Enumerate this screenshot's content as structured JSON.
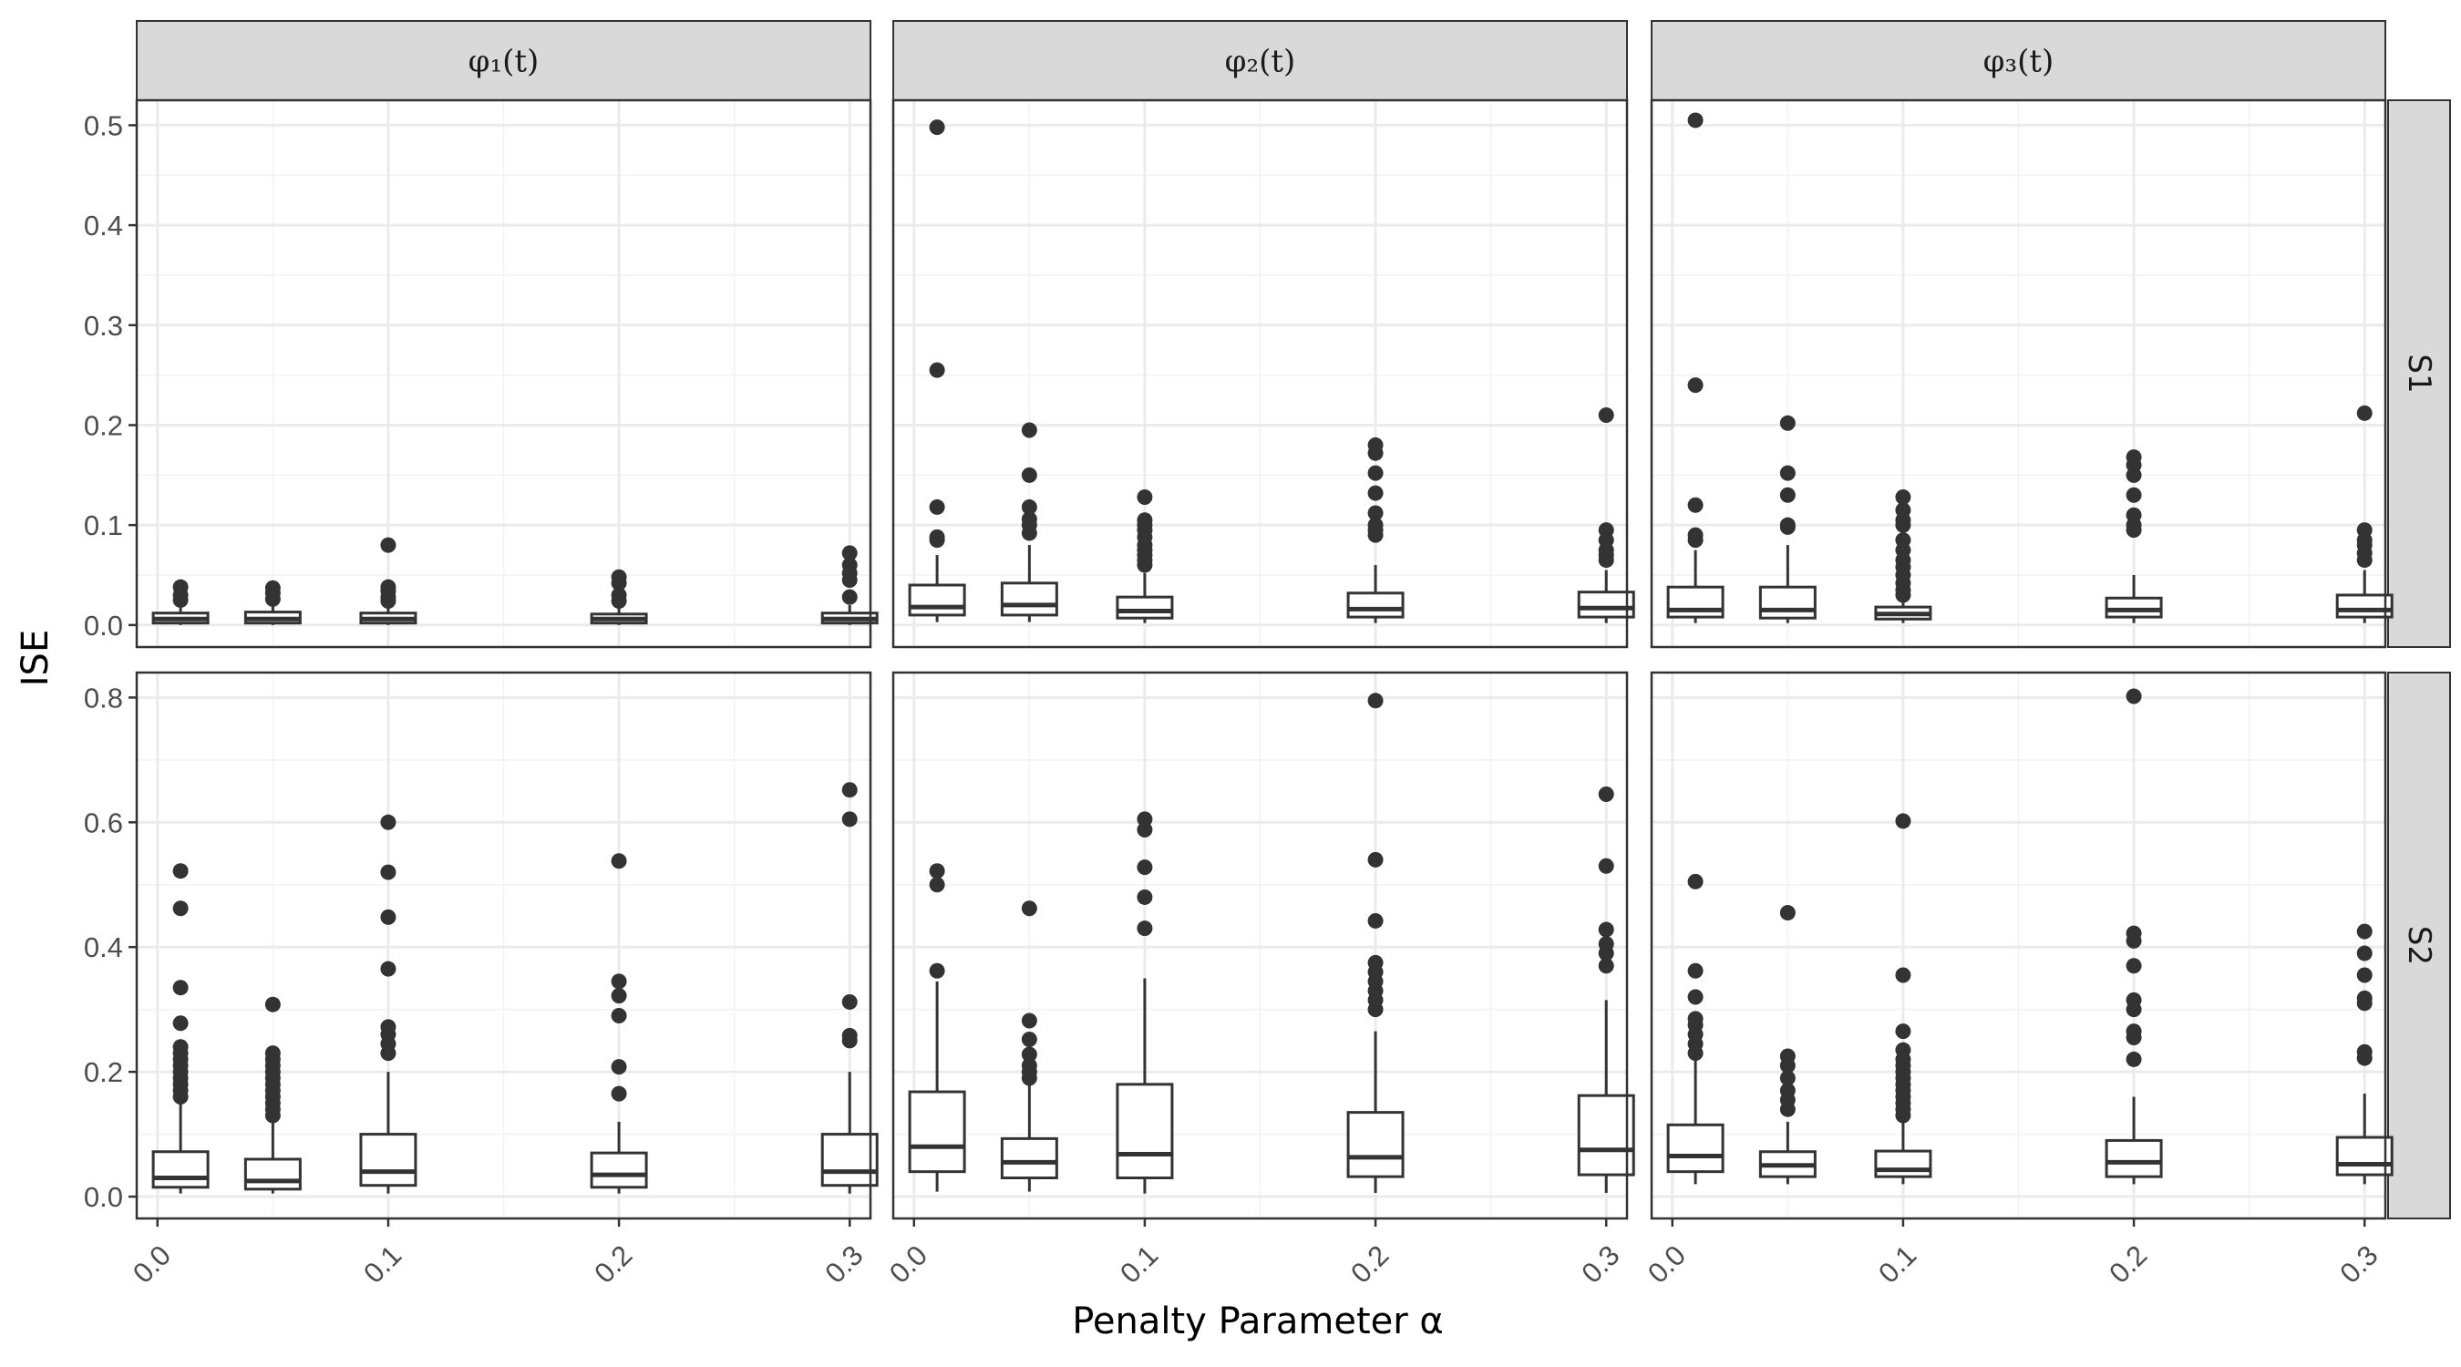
{
  "chart_data": {
    "type": "boxplot",
    "facets": {
      "columns": [
        "φ₁(t)",
        "φ₂(t)",
        "φ₃(t)"
      ],
      "rows": [
        "S1",
        "S2"
      ]
    },
    "xlabel": "Penalty Parameter α",
    "ylabel": "ISE",
    "x_ticks": [
      0.0,
      0.1,
      0.2,
      0.3
    ],
    "x_tick_labels": [
      "0.0",
      "0.1",
      "0.2",
      "0.3"
    ],
    "x_range": [
      -0.009,
      0.309
    ],
    "alpha_values": [
      0.01,
      0.05,
      0.1,
      0.2,
      0.3
    ],
    "row_axes": [
      {
        "row": "S1",
        "ylim": [
          -0.022,
          0.525
        ],
        "ticks": [
          0.0,
          0.1,
          0.2,
          0.3,
          0.4,
          0.5
        ],
        "tick_labels": [
          "0.0",
          "0.1",
          "0.2",
          "0.3",
          "0.4",
          "0.5"
        ]
      },
      {
        "row": "S2",
        "ylim": [
          -0.035,
          0.84
        ],
        "ticks": [
          0.0,
          0.2,
          0.4,
          0.6,
          0.8
        ],
        "tick_labels": [
          "0.0",
          "0.2",
          "0.4",
          "0.6",
          "0.8"
        ]
      }
    ],
    "panels": [
      {
        "row": "S1",
        "col": "φ₁(t)",
        "boxes": [
          {
            "alpha": 0.01,
            "min": 0.0,
            "q1": 0.002,
            "median": 0.006,
            "q3": 0.012,
            "max": 0.02,
            "outliers": [
              0.025,
              0.03,
              0.038
            ]
          },
          {
            "alpha": 0.05,
            "min": 0.0,
            "q1": 0.002,
            "median": 0.006,
            "q3": 0.013,
            "max": 0.022,
            "outliers": [
              0.026,
              0.032,
              0.037
            ]
          },
          {
            "alpha": 0.1,
            "min": 0.0,
            "q1": 0.002,
            "median": 0.006,
            "q3": 0.012,
            "max": 0.02,
            "outliers": [
              0.024,
              0.028,
              0.034,
              0.038,
              0.08
            ]
          },
          {
            "alpha": 0.2,
            "min": 0.0,
            "q1": 0.002,
            "median": 0.006,
            "q3": 0.011,
            "max": 0.02,
            "outliers": [
              0.024,
              0.03,
              0.042,
              0.048
            ]
          },
          {
            "alpha": 0.3,
            "min": 0.0,
            "q1": 0.002,
            "median": 0.006,
            "q3": 0.012,
            "max": 0.02,
            "outliers": [
              0.028,
              0.045,
              0.052,
              0.06,
              0.072
            ]
          }
        ]
      },
      {
        "row": "S1",
        "col": "φ₂(t)",
        "boxes": [
          {
            "alpha": 0.01,
            "min": 0.003,
            "q1": 0.01,
            "median": 0.018,
            "q3": 0.04,
            "max": 0.07,
            "outliers": [
              0.085,
              0.088,
              0.118,
              0.255,
              0.498
            ]
          },
          {
            "alpha": 0.05,
            "min": 0.003,
            "q1": 0.01,
            "median": 0.02,
            "q3": 0.042,
            "max": 0.08,
            "outliers": [
              0.092,
              0.1,
              0.106,
              0.118,
              0.15,
              0.195
            ]
          },
          {
            "alpha": 0.1,
            "min": 0.002,
            "q1": 0.007,
            "median": 0.014,
            "q3": 0.028,
            "max": 0.052,
            "outliers": [
              0.06,
              0.065,
              0.07,
              0.075,
              0.08,
              0.088,
              0.095,
              0.1,
              0.105,
              0.128
            ]
          },
          {
            "alpha": 0.2,
            "min": 0.002,
            "q1": 0.008,
            "median": 0.016,
            "q3": 0.032,
            "max": 0.06,
            "outliers": [
              0.09,
              0.095,
              0.1,
              0.112,
              0.132,
              0.152,
              0.172,
              0.18
            ]
          },
          {
            "alpha": 0.3,
            "min": 0.002,
            "q1": 0.008,
            "median": 0.017,
            "q3": 0.033,
            "max": 0.055,
            "outliers": [
              0.065,
              0.07,
              0.075,
              0.085,
              0.095,
              0.21
            ]
          }
        ]
      },
      {
        "row": "S1",
        "col": "φ₃(t)",
        "boxes": [
          {
            "alpha": 0.01,
            "min": 0.002,
            "q1": 0.008,
            "median": 0.015,
            "q3": 0.038,
            "max": 0.075,
            "outliers": [
              0.085,
              0.09,
              0.12,
              0.24,
              0.505
            ]
          },
          {
            "alpha": 0.05,
            "min": 0.002,
            "q1": 0.007,
            "median": 0.015,
            "q3": 0.038,
            "max": 0.08,
            "outliers": [
              0.098,
              0.1,
              0.13,
              0.152,
              0.202
            ]
          },
          {
            "alpha": 0.1,
            "min": 0.002,
            "q1": 0.006,
            "median": 0.011,
            "q3": 0.018,
            "max": 0.025,
            "outliers": [
              0.03,
              0.035,
              0.042,
              0.05,
              0.058,
              0.065,
              0.075,
              0.085,
              0.1,
              0.105,
              0.115,
              0.128
            ]
          },
          {
            "alpha": 0.2,
            "min": 0.002,
            "q1": 0.008,
            "median": 0.015,
            "q3": 0.027,
            "max": 0.05,
            "outliers": [
              0.095,
              0.1,
              0.11,
              0.13,
              0.15,
              0.16,
              0.168
            ]
          },
          {
            "alpha": 0.3,
            "min": 0.002,
            "q1": 0.008,
            "median": 0.015,
            "q3": 0.03,
            "max": 0.055,
            "outliers": [
              0.065,
              0.072,
              0.08,
              0.085,
              0.095,
              0.212
            ]
          }
        ]
      },
      {
        "row": "S2",
        "col": "φ₁(t)",
        "boxes": [
          {
            "alpha": 0.01,
            "min": 0.005,
            "q1": 0.015,
            "median": 0.03,
            "q3": 0.072,
            "max": 0.15,
            "outliers": [
              0.16,
              0.17,
              0.18,
              0.19,
              0.2,
              0.21,
              0.22,
              0.23,
              0.24,
              0.278,
              0.335,
              0.462,
              0.522
            ]
          },
          {
            "alpha": 0.05,
            "min": 0.005,
            "q1": 0.012,
            "median": 0.025,
            "q3": 0.06,
            "max": 0.12,
            "outliers": [
              0.13,
              0.14,
              0.15,
              0.16,
              0.17,
              0.18,
              0.19,
              0.2,
              0.21,
              0.22,
              0.23,
              0.308
            ]
          },
          {
            "alpha": 0.1,
            "min": 0.005,
            "q1": 0.018,
            "median": 0.04,
            "q3": 0.1,
            "max": 0.2,
            "outliers": [
              0.23,
              0.245,
              0.26,
              0.272,
              0.365,
              0.448,
              0.52,
              0.6
            ]
          },
          {
            "alpha": 0.2,
            "min": 0.005,
            "q1": 0.015,
            "median": 0.035,
            "q3": 0.07,
            "max": 0.12,
            "outliers": [
              0.165,
              0.208,
              0.29,
              0.322,
              0.345,
              0.538
            ]
          },
          {
            "alpha": 0.3,
            "min": 0.005,
            "q1": 0.018,
            "median": 0.04,
            "q3": 0.1,
            "max": 0.2,
            "outliers": [
              0.25,
              0.258,
              0.312,
              0.605,
              0.652
            ]
          }
        ]
      },
      {
        "row": "S2",
        "col": "φ₂(t)",
        "boxes": [
          {
            "alpha": 0.01,
            "min": 0.008,
            "q1": 0.04,
            "median": 0.08,
            "q3": 0.168,
            "max": 0.345,
            "outliers": [
              0.362,
              0.5,
              0.522
            ]
          },
          {
            "alpha": 0.05,
            "min": 0.008,
            "q1": 0.03,
            "median": 0.055,
            "q3": 0.093,
            "max": 0.18,
            "outliers": [
              0.19,
              0.2,
              0.21,
              0.228,
              0.252,
              0.282,
              0.462
            ]
          },
          {
            "alpha": 0.1,
            "min": 0.005,
            "q1": 0.03,
            "median": 0.068,
            "q3": 0.18,
            "max": 0.35,
            "outliers": [
              0.43,
              0.48,
              0.528,
              0.588,
              0.605
            ]
          },
          {
            "alpha": 0.2,
            "min": 0.006,
            "q1": 0.032,
            "median": 0.063,
            "q3": 0.135,
            "max": 0.265,
            "outliers": [
              0.3,
              0.315,
              0.33,
              0.345,
              0.36,
              0.375,
              0.442,
              0.54,
              0.795
            ]
          },
          {
            "alpha": 0.3,
            "min": 0.006,
            "q1": 0.035,
            "median": 0.075,
            "q3": 0.162,
            "max": 0.315,
            "outliers": [
              0.37,
              0.39,
              0.405,
              0.428,
              0.53,
              0.645
            ]
          }
        ]
      },
      {
        "row": "S2",
        "col": "φ₃(t)",
        "boxes": [
          {
            "alpha": 0.01,
            "min": 0.02,
            "q1": 0.04,
            "median": 0.065,
            "q3": 0.115,
            "max": 0.22,
            "outliers": [
              0.23,
              0.245,
              0.26,
              0.275,
              0.285,
              0.32,
              0.362,
              0.505
            ]
          },
          {
            "alpha": 0.05,
            "min": 0.02,
            "q1": 0.032,
            "median": 0.05,
            "q3": 0.072,
            "max": 0.12,
            "outliers": [
              0.14,
              0.155,
              0.17,
              0.19,
              0.21,
              0.225,
              0.455
            ]
          },
          {
            "alpha": 0.1,
            "min": 0.02,
            "q1": 0.032,
            "median": 0.043,
            "q3": 0.073,
            "max": 0.12,
            "outliers": [
              0.13,
              0.14,
              0.15,
              0.16,
              0.17,
              0.18,
              0.19,
              0.2,
              0.21,
              0.22,
              0.235,
              0.265,
              0.355,
              0.602
            ]
          },
          {
            "alpha": 0.2,
            "min": 0.02,
            "q1": 0.032,
            "median": 0.055,
            "q3": 0.09,
            "max": 0.16,
            "outliers": [
              0.22,
              0.255,
              0.265,
              0.3,
              0.315,
              0.37,
              0.41,
              0.422,
              0.802
            ]
          },
          {
            "alpha": 0.3,
            "min": 0.02,
            "q1": 0.035,
            "median": 0.052,
            "q3": 0.095,
            "max": 0.165,
            "outliers": [
              0.222,
              0.232,
              0.31,
              0.318,
              0.355,
              0.39,
              0.425
            ]
          }
        ]
      }
    ]
  }
}
